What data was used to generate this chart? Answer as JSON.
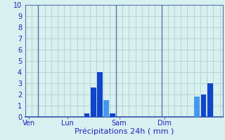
{
  "xlabel": "Précipitations 24h ( mm )",
  "ylim": [
    0,
    10
  ],
  "background_color": "#d8f0f0",
  "grid_color": "#b8d4d4",
  "bar_color_dark": "#1144cc",
  "bar_color_light": "#4499ee",
  "x_tick_labels": [
    "Ven",
    "Lun",
    "Sam",
    "Dim"
  ],
  "x_tick_positions": [
    0,
    6,
    14,
    21
  ],
  "vline_positions": [
    2,
    14,
    21
  ],
  "bars": [
    {
      "x": 9,
      "height": 0.3,
      "color": "#1144cc"
    },
    {
      "x": 10,
      "height": 2.6,
      "color": "#1144cc"
    },
    {
      "x": 11,
      "height": 4.0,
      "color": "#1144cc"
    },
    {
      "x": 12,
      "height": 1.5,
      "color": "#4499ee"
    },
    {
      "x": 13,
      "height": 0.3,
      "color": "#1144cc"
    },
    {
      "x": 26,
      "height": 1.8,
      "color": "#4499ee"
    },
    {
      "x": 27,
      "height": 2.0,
      "color": "#1144cc"
    },
    {
      "x": 28,
      "height": 3.0,
      "color": "#1144cc"
    }
  ],
  "yticks": [
    0,
    1,
    2,
    3,
    4,
    5,
    6,
    7,
    8,
    9,
    10
  ],
  "bar_width": 0.85,
  "xlim": [
    -0.5,
    30
  ],
  "n_xgrid": 30
}
